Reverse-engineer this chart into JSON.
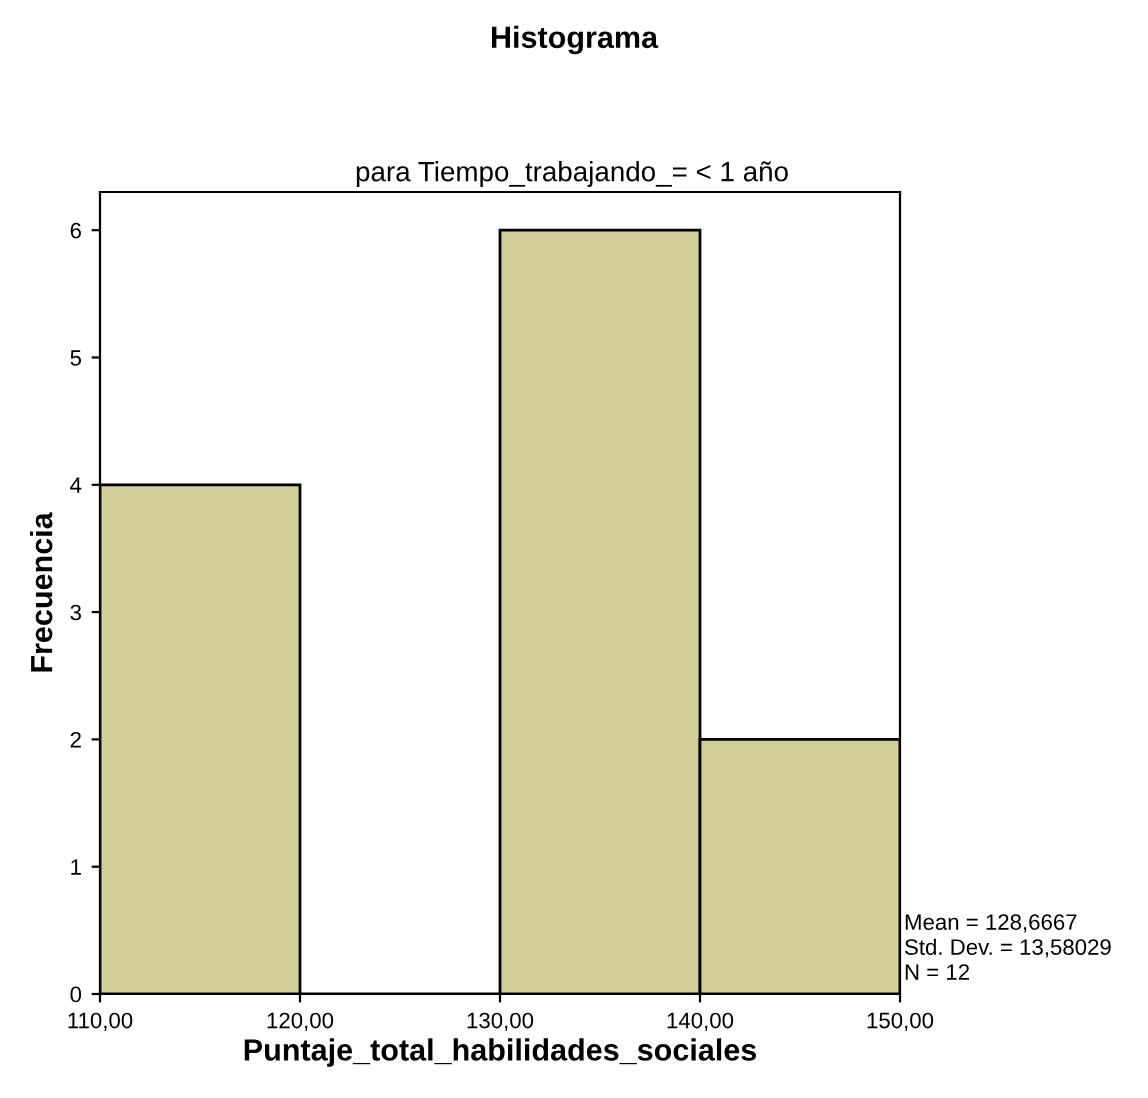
{
  "chart_data": {
    "type": "histogram",
    "title": "Histograma",
    "subtitle": "para Tiempo_trabajando_= < 1 año",
    "xlabel": "Puntaje_total_habilidades_sociales",
    "ylabel": "Frecuencia",
    "bins": [
      110,
      120,
      130,
      140,
      150
    ],
    "values": [
      4,
      0,
      6,
      2
    ],
    "color": "#d3ce98",
    "xlim": [
      110,
      150
    ],
    "xticks": [
      {
        "value": 110,
        "label": "110,00"
      },
      {
        "value": 120,
        "label": "120,00"
      },
      {
        "value": 130,
        "label": "130,00"
      },
      {
        "value": 140,
        "label": "140,00"
      },
      {
        "value": 150,
        "label": "150,00"
      }
    ],
    "ylim": [
      0,
      6.3
    ],
    "yticks": [
      0,
      1,
      2,
      3,
      4,
      5,
      6
    ],
    "grid": false,
    "legend": false,
    "annotations": [
      "Mean = 128,6667",
      "Std. Dev. = 13,58029",
      "N = 12"
    ]
  }
}
